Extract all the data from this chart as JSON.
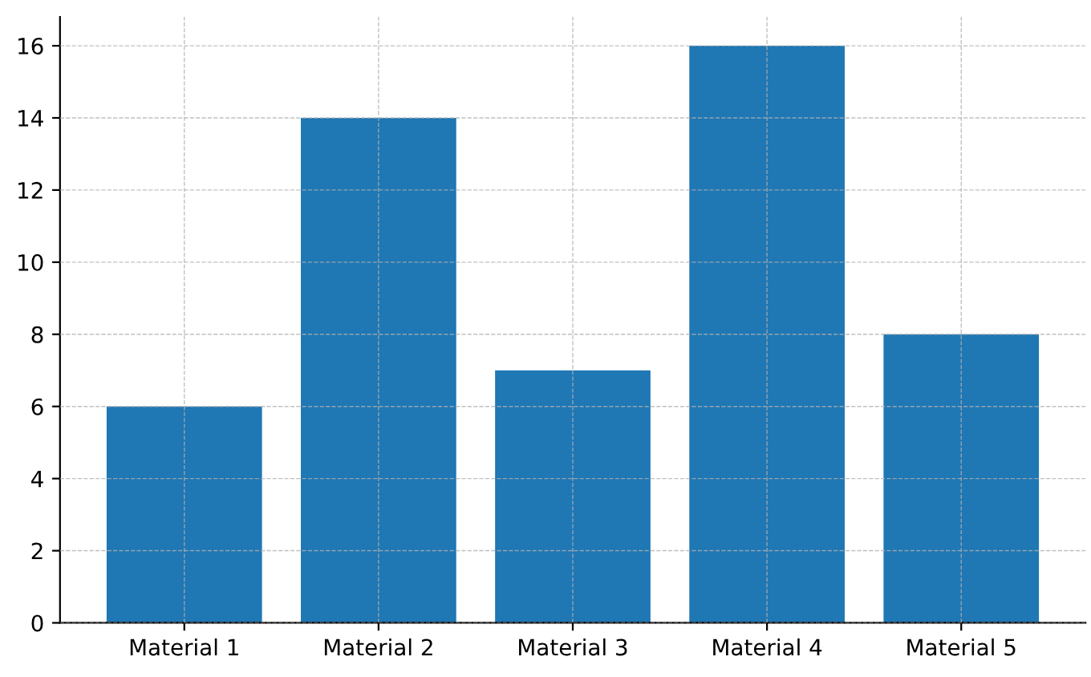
{
  "chart_data": {
    "type": "bar",
    "categories": [
      "Material 1",
      "Material 2",
      "Material 3",
      "Material 4",
      "Material 5"
    ],
    "values": [
      6,
      14,
      7,
      16,
      8
    ],
    "color": "#1f77b4",
    "ylim": [
      0,
      16.8
    ],
    "yticks": [
      0,
      2,
      4,
      6,
      8,
      10,
      12,
      14,
      16
    ],
    "grid": true
  }
}
